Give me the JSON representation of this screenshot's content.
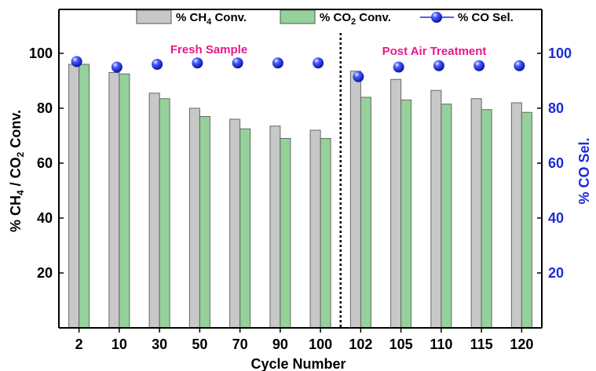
{
  "chart_data": {
    "type": "bar",
    "categories": [
      "2",
      "10",
      "30",
      "50",
      "70",
      "90",
      "100",
      "102",
      "105",
      "110",
      "115",
      "120"
    ],
    "series": [
      {
        "name": "% CH4 Conv.",
        "kind": "bar",
        "axis": "left",
        "color": "#c8c8c8",
        "values": [
          96,
          93,
          85.5,
          80,
          76,
          73.5,
          72,
          93.5,
          90.5,
          86.5,
          83.5,
          82
        ]
      },
      {
        "name": "% CO2 Conv.",
        "kind": "bar",
        "axis": "left",
        "color": "#95d19a",
        "values": [
          96,
          92.5,
          83.5,
          77,
          72.5,
          69,
          69,
          84,
          83,
          81.5,
          79.5,
          78.5
        ]
      },
      {
        "name": "% CO Sel.",
        "kind": "scatter",
        "axis": "right",
        "color": "#1c2bd8",
        "values": [
          97,
          95,
          96,
          96.5,
          96.5,
          96.5,
          96.5,
          91.5,
          95,
          95.5,
          95.5,
          95.5
        ]
      }
    ],
    "legend": {
      "ch4_label": {
        "pre": "% CH",
        "sub": "4",
        "post": " Conv."
      },
      "co2_label": {
        "pre": "% CO",
        "sub": "2",
        "post": " Conv."
      },
      "co_label": "% CO Sel.",
      "placement": "top"
    },
    "xlabel": "Cycle Number",
    "ylabel_left": {
      "p1": "% CH",
      "s1": "4",
      "p2": " / CO",
      "s2": "2",
      "p3": " Conv."
    },
    "ylabel_right": "% CO Sel.",
    "ylim": [
      0,
      116
    ],
    "yticks": [
      20,
      40,
      60,
      80,
      100
    ],
    "annotations": [
      "Fresh Sample",
      "Post Air Treatment"
    ],
    "annotation_color": "#e8178a",
    "divider_after_index": 6,
    "grid": false
  }
}
